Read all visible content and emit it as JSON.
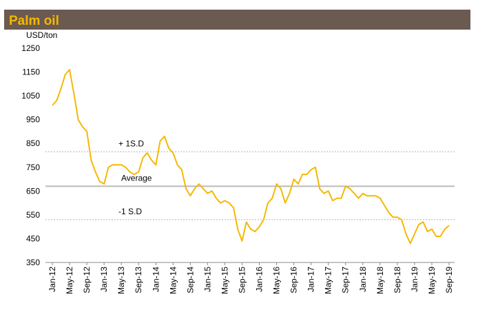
{
  "chart_data": {
    "type": "line",
    "title": "Palm oil",
    "y_label": "USD/ton",
    "categories": [
      "Jan-12",
      null,
      null,
      null,
      "May-12",
      null,
      null,
      null,
      "Sep-12",
      null,
      null,
      null,
      "Jan-13",
      null,
      null,
      null,
      "May-13",
      null,
      null,
      null,
      "Sep-13",
      null,
      null,
      null,
      "Jan-14",
      null,
      null,
      null,
      "May-14",
      null,
      null,
      null,
      "Sep-14",
      null,
      null,
      null,
      "Jan-15",
      null,
      null,
      null,
      "May-15",
      null,
      null,
      null,
      "Sep-15",
      null,
      null,
      null,
      "Jan-16",
      null,
      null,
      null,
      "May-16",
      null,
      null,
      null,
      "Sep-16",
      null,
      null,
      null,
      "Jan-17",
      null,
      null,
      null,
      "May-17",
      null,
      null,
      null,
      "Sep-17",
      null,
      null,
      null,
      "Jan-18",
      null,
      null,
      null,
      "May-18",
      null,
      null,
      null,
      "Sep-18",
      null,
      null,
      null,
      "Jan-19",
      null,
      null,
      null,
      "May-19",
      null,
      null,
      null,
      "Sep-19"
    ],
    "series": [
      {
        "color": "#f5b800",
        "values": [
          1010,
          1030,
          1080,
          1140,
          1160,
          1060,
          950,
          920,
          900,
          780,
          730,
          690,
          680,
          750,
          760,
          760,
          760,
          750,
          730,
          720,
          730,
          790,
          810,
          780,
          760,
          860,
          880,
          830,
          810,
          760,
          740,
          660,
          630,
          660,
          680,
          660,
          640,
          650,
          620,
          600,
          610,
          600,
          580,
          490,
          440,
          520,
          490,
          480,
          500,
          530,
          600,
          620,
          680,
          660,
          600,
          640,
          700,
          680,
          720,
          720,
          740,
          750,
          660,
          640,
          650,
          610,
          620,
          620,
          670,
          660,
          640,
          620,
          640,
          630,
          630,
          630,
          620,
          590,
          560,
          540,
          540,
          530,
          470,
          430,
          470,
          510,
          520,
          480,
          490,
          460,
          460,
          490,
          505
        ]
      }
    ],
    "reference_lines": [
      {
        "label": "+ 1S.D",
        "value": 815,
        "color": "#bbbbbb",
        "style": "dotted"
      },
      {
        "label": "Average",
        "value": 670,
        "color": "#bbbbbb",
        "style": "solid"
      },
      {
        "label": "-1 S.D",
        "value": 530,
        "color": "#bbbbbb",
        "style": "dotted"
      }
    ],
    "ylim": [
      350,
      1250
    ],
    "yticks": [
      350,
      450,
      550,
      650,
      750,
      850,
      950,
      1050,
      1150,
      1250
    ],
    "grid": false
  }
}
